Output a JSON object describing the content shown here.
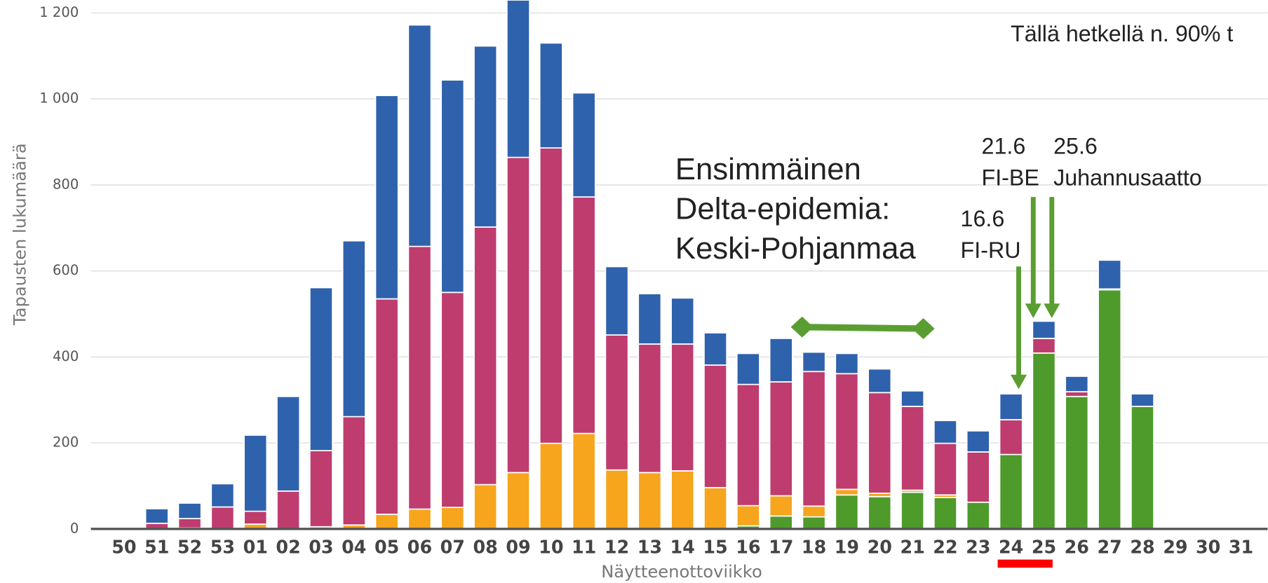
{
  "chart_data": {
    "type": "stacked_bar",
    "x_label": "Näytteenottoviikko",
    "y_label": "Tapausten lukumäärä",
    "categories": [
      "50",
      "51",
      "52",
      "53",
      "01",
      "02",
      "03",
      "04",
      "05",
      "06",
      "07",
      "08",
      "09",
      "10",
      "11",
      "12",
      "13",
      "14",
      "15",
      "16",
      "17",
      "18",
      "19",
      "20",
      "21",
      "22",
      "23",
      "24",
      "25",
      "26",
      "27",
      "28",
      "29",
      "30",
      "31"
    ],
    "series": [
      {
        "color": "#4e9a2b",
        "values": [
          0,
          0,
          0,
          0,
          0,
          0,
          0,
          0,
          0,
          0,
          0,
          0,
          0,
          0,
          0,
          0,
          0,
          0,
          0,
          7,
          30,
          28,
          79,
          75,
          85,
          73,
          62,
          173,
          409,
          308,
          556,
          285,
          0,
          0,
          0
        ]
      },
      {
        "color": "#f6a51c",
        "values": [
          0,
          0,
          2,
          0,
          11,
          0,
          5,
          9,
          34,
          46,
          50,
          103,
          131,
          199,
          222,
          137,
          131,
          135,
          96,
          47,
          47,
          25,
          13,
          8,
          5,
          6,
          0,
          0,
          0,
          0,
          0,
          0,
          0,
          0,
          0
        ]
      },
      {
        "color": "#bf3c6f",
        "values": [
          0,
          13,
          22,
          51,
          30,
          88,
          177,
          252,
          501,
          611,
          500,
          599,
          733,
          687,
          550,
          314,
          299,
          295,
          285,
          282,
          265,
          313,
          269,
          234,
          195,
          120,
          117,
          81,
          34,
          11,
          2,
          0,
          0,
          0,
          0
        ]
      },
      {
        "color": "#2f62ad",
        "values": [
          0,
          34,
          36,
          54,
          177,
          220,
          379,
          409,
          473,
          515,
          494,
          421,
          366,
          244,
          242,
          159,
          117,
          107,
          75,
          72,
          101,
          45,
          47,
          55,
          36,
          53,
          49,
          60,
          40,
          36,
          67,
          29,
          0,
          0,
          0
        ]
      }
    ],
    "ylim": [
      0,
      1230
    ],
    "yticks": [
      0,
      200,
      400,
      600,
      800,
      {
        "value": 1000,
        "label": "1 000"
      },
      {
        "value": 1200,
        "label": "1 200"
      }
    ],
    "grid": true,
    "annotations": [
      [
        "Ensimmäinen",
        "Delta-epidemia:",
        "Keski-Pohjanmaa"
      ],
      [
        "16.6",
        "FI-RU"
      ],
      [
        "21.6",
        "FI-BE"
      ],
      [
        "25.6",
        "Juhannusaatto"
      ],
      [
        "Tällä hetkellä n. 90% t"
      ]
    ]
  }
}
